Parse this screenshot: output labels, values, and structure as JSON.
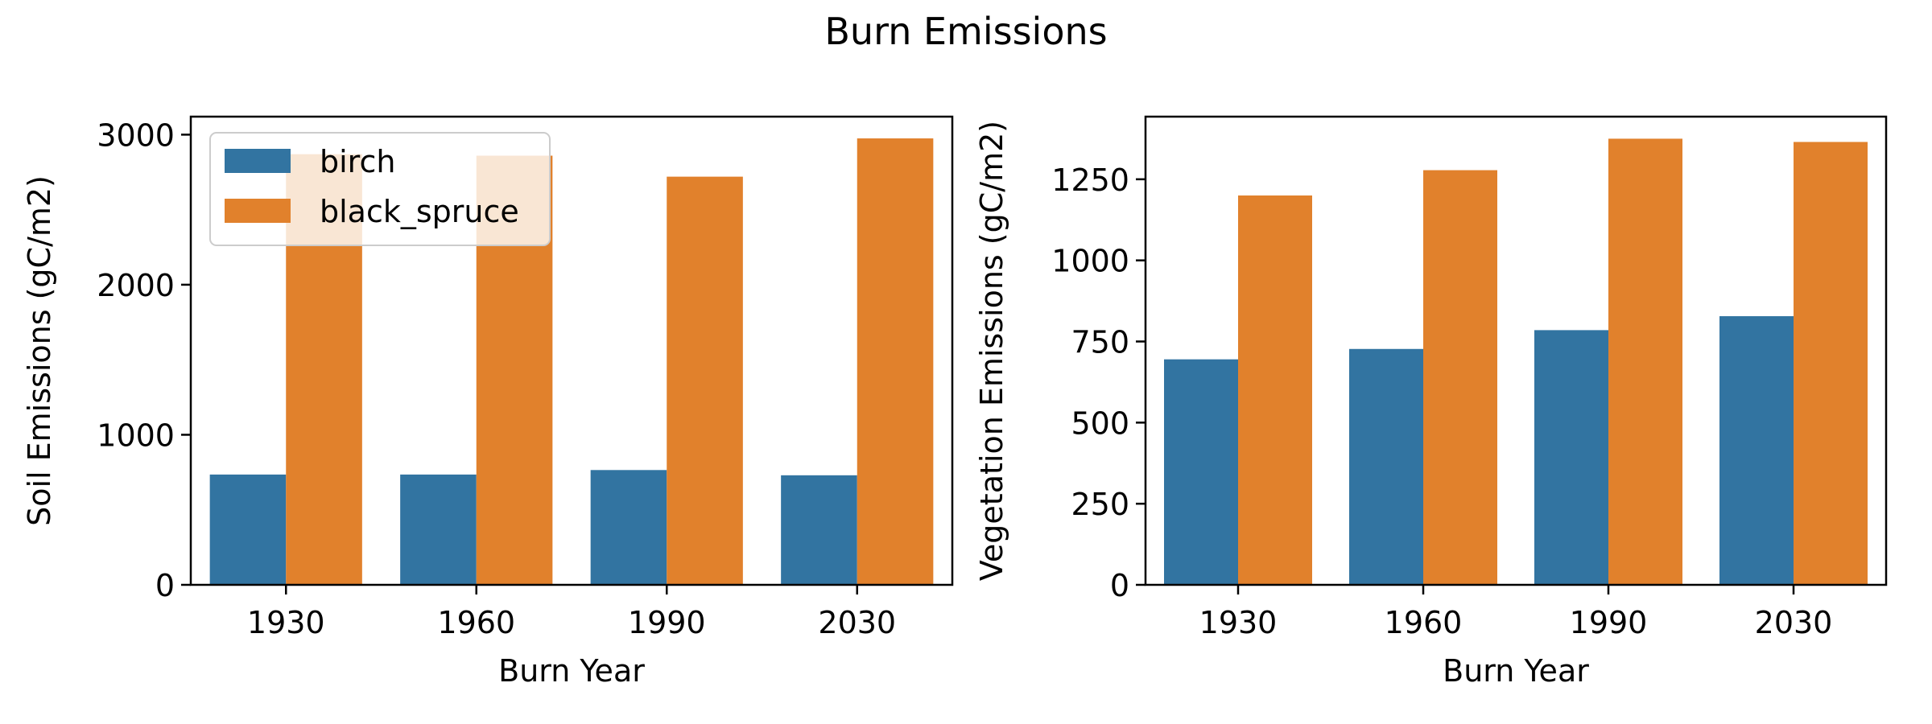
{
  "figure": {
    "title": "Burn Emissions"
  },
  "colors": {
    "birch": "#3274a1",
    "black_spruce": "#e1812c"
  },
  "chart_data": [
    {
      "type": "bar",
      "title": "",
      "xlabel": "Burn Year",
      "ylabel": "Soil Emissions (gC/m2)",
      "categories": [
        "1930",
        "1960",
        "1990",
        "2030"
      ],
      "series": [
        {
          "name": "birch",
          "values": [
            735,
            735,
            765,
            730
          ]
        },
        {
          "name": "black_spruce",
          "values": [
            2870,
            2860,
            2720,
            2975
          ]
        }
      ],
      "ylim": [
        0,
        3120
      ],
      "yticks": [
        0,
        1000,
        2000,
        3000
      ],
      "legend": "top-left",
      "grid": false
    },
    {
      "type": "bar",
      "title": "",
      "xlabel": "Burn Year",
      "ylabel": "Vegetation Emissions (gC/m2)",
      "categories": [
        "1930",
        "1960",
        "1990",
        "2030"
      ],
      "series": [
        {
          "name": "birch",
          "values": [
            695,
            727,
            785,
            828
          ]
        },
        {
          "name": "black_spruce",
          "values": [
            1200,
            1278,
            1375,
            1365
          ]
        }
      ],
      "ylim": [
        0,
        1443
      ],
      "yticks": [
        0,
        250,
        500,
        750,
        1000,
        1250
      ],
      "legend": "none",
      "grid": false
    }
  ]
}
